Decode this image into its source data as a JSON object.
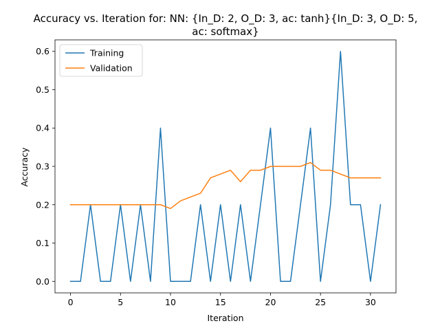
{
  "chart_data": {
    "type": "line",
    "title_lines": [
      "Accuracy vs. Iteration for: NN: {In_D: 2, O_D: 3, ac: tanh}{In_D: 3, O_D: 5,",
      "ac: softmax}"
    ],
    "xlabel": "Iteration",
    "ylabel": "Accuracy",
    "xlim": [
      -1.55,
      32.55
    ],
    "ylim": [
      -0.03,
      0.63
    ],
    "xticks": [
      0,
      5,
      10,
      15,
      20,
      25,
      30
    ],
    "yticks": [
      0.0,
      0.1,
      0.2,
      0.3,
      0.4,
      0.5,
      0.6
    ],
    "xtick_labels": [
      "0",
      "5",
      "10",
      "15",
      "20",
      "25",
      "30"
    ],
    "ytick_labels": [
      "0.0",
      "0.1",
      "0.2",
      "0.3",
      "0.4",
      "0.5",
      "0.6"
    ],
    "grid": false,
    "legend_position": "top-left",
    "x": [
      0,
      1,
      2,
      3,
      4,
      5,
      6,
      7,
      8,
      9,
      10,
      11,
      12,
      13,
      14,
      15,
      16,
      17,
      18,
      19,
      20,
      21,
      22,
      23,
      24,
      25,
      26,
      27,
      28,
      29,
      30,
      31
    ],
    "series": [
      {
        "name": "Training",
        "color": "#1f77b4",
        "values": [
          0.0,
          0.0,
          0.2,
          0.0,
          0.0,
          0.2,
          0.0,
          0.2,
          0.0,
          0.4,
          0.0,
          0.0,
          0.0,
          0.2,
          0.0,
          0.2,
          0.0,
          0.2,
          0.0,
          0.2,
          0.4,
          0.0,
          0.0,
          0.2,
          0.4,
          0.0,
          0.2,
          0.6,
          0.2,
          0.2,
          0.0,
          0.2
        ]
      },
      {
        "name": "Validation",
        "color": "#ff7f0e",
        "values": [
          0.2,
          0.2,
          0.2,
          0.2,
          0.2,
          0.2,
          0.2,
          0.2,
          0.2,
          0.2,
          0.19,
          0.21,
          0.22,
          0.23,
          0.27,
          0.28,
          0.29,
          0.26,
          0.29,
          0.29,
          0.3,
          0.3,
          0.3,
          0.3,
          0.31,
          0.29,
          0.29,
          0.28,
          0.27,
          0.27,
          0.27,
          0.27
        ]
      }
    ]
  }
}
